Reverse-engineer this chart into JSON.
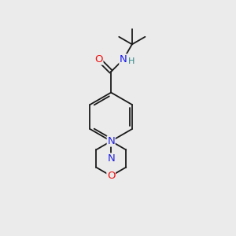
{
  "bg_color": "#ebebeb",
  "bond_color": "#1a1a1a",
  "bond_width": 1.3,
  "atom_colors": {
    "O": "#ee1111",
    "N": "#2222dd",
    "N_amide": "#1a1aee",
    "H": "#338888",
    "C": "#1a1a1a"
  },
  "font_size_atom": 9.5,
  "font_size_H": 8.0
}
